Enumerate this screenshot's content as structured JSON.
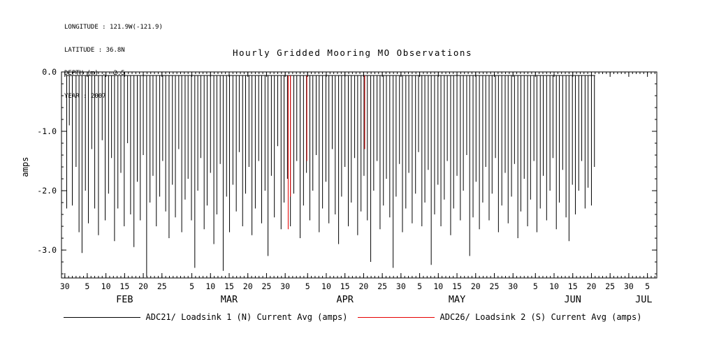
{
  "meta": {
    "longitude": "LONGITUDE : 121.9W(-121.9)",
    "latitude": "LATITUDE : 36.8N",
    "depth": "DEPTH (m) : -2.5",
    "year": "YEAR : 2007"
  },
  "title": "Hourly Gridded Mooring MO Observations",
  "ylabel": "amps",
  "colors": {
    "black_series": "#000000",
    "red_series": "#e60000",
    "axis": "#000000"
  },
  "legend": [
    {
      "label": "ADC21/ Loadsink 1 (N) Current Avg (amps)",
      "color": "#000000"
    },
    {
      "label": "ADC26/ Loadsink 2 (S) Current Avg (amps)",
      "color": "#e60000"
    }
  ],
  "chart_data": {
    "type": "line",
    "title": "Hourly Gridded Mooring MO Observations",
    "ylabel": "amps",
    "xlabel": "",
    "x_unit": "days (day 0 = Jan 30, year 2007)",
    "ylim": [
      -3.47,
      0
    ],
    "xlim_days": [
      -0.9,
      158.5
    ],
    "grid": false,
    "legend_position": "bottom",
    "baseline": -0.06,
    "baseline_range_days": [
      0.2,
      142
    ],
    "y_ticks": [
      {
        "v": 0,
        "label": "0.0"
      },
      {
        "v": -1,
        "label": "-1.0"
      },
      {
        "v": -2,
        "label": "-2.0"
      },
      {
        "v": -3,
        "label": "-3.0"
      }
    ],
    "y_minor_step": 0.2,
    "x_minor_step": 1,
    "x_ticks": [
      {
        "day": 0,
        "label": "30"
      },
      {
        "day": 6,
        "label": "5"
      },
      {
        "day": 11,
        "label": "10"
      },
      {
        "day": 16,
        "label": "15"
      },
      {
        "day": 21,
        "label": "20"
      },
      {
        "day": 26,
        "label": "25"
      },
      {
        "day": 34,
        "label": "5"
      },
      {
        "day": 39,
        "label": "10"
      },
      {
        "day": 44,
        "label": "15"
      },
      {
        "day": 49,
        "label": "20"
      },
      {
        "day": 54,
        "label": "25"
      },
      {
        "day": 59,
        "label": "30"
      },
      {
        "day": 65,
        "label": "5"
      },
      {
        "day": 70,
        "label": "10"
      },
      {
        "day": 75,
        "label": "15"
      },
      {
        "day": 80,
        "label": "20"
      },
      {
        "day": 85,
        "label": "25"
      },
      {
        "day": 90,
        "label": "30"
      },
      {
        "day": 95,
        "label": "5"
      },
      {
        "day": 100,
        "label": "10"
      },
      {
        "day": 105,
        "label": "15"
      },
      {
        "day": 110,
        "label": "20"
      },
      {
        "day": 115,
        "label": "25"
      },
      {
        "day": 120,
        "label": "30"
      },
      {
        "day": 126,
        "label": "5"
      },
      {
        "day": 131,
        "label": "10"
      },
      {
        "day": 136,
        "label": "15"
      },
      {
        "day": 141,
        "label": "20"
      },
      {
        "day": 146,
        "label": "25"
      },
      {
        "day": 151,
        "label": "30"
      },
      {
        "day": 156,
        "label": "5"
      }
    ],
    "month_labels": [
      {
        "day": 16,
        "label": "FEB"
      },
      {
        "day": 44,
        "label": "MAR"
      },
      {
        "day": 75,
        "label": "APR"
      },
      {
        "day": 105,
        "label": "MAY"
      },
      {
        "day": 136,
        "label": "JUN"
      },
      {
        "day": 155,
        "label": "JUL"
      }
    ],
    "series": [
      {
        "name": "ADC21/ Loadsink 1 (N) Current Avg (amps)",
        "color": "#000000",
        "spikes": [
          [
            0.5,
            -2.3
          ],
          [
            1.2,
            -0.9
          ],
          [
            2.0,
            -2.25
          ],
          [
            3.0,
            -1.6
          ],
          [
            3.8,
            -2.7
          ],
          [
            4.6,
            -3.05
          ],
          [
            5.5,
            -2.0
          ],
          [
            6.3,
            -2.55
          ],
          [
            7.2,
            -1.3
          ],
          [
            8.0,
            -2.3
          ],
          [
            9.0,
            -2.75
          ],
          [
            10.0,
            -1.15
          ],
          [
            10.8,
            -2.5
          ],
          [
            11.7,
            -2.05
          ],
          [
            12.5,
            -1.45
          ],
          [
            13.3,
            -2.85
          ],
          [
            14.2,
            -2.3
          ],
          [
            15.0,
            -1.7
          ],
          [
            15.9,
            -2.6
          ],
          [
            16.8,
            -1.2
          ],
          [
            17.6,
            -2.4
          ],
          [
            18.5,
            -2.95
          ],
          [
            19.4,
            -1.85
          ],
          [
            20.2,
            -2.5
          ],
          [
            21.0,
            -1.4
          ],
          [
            21.9,
            -3.45
          ],
          [
            22.8,
            -2.2
          ],
          [
            23.6,
            -1.75
          ],
          [
            24.5,
            -2.6
          ],
          [
            25.4,
            -2.1
          ],
          [
            26.2,
            -1.5
          ],
          [
            27.0,
            -2.35
          ],
          [
            27.9,
            -2.8
          ],
          [
            28.8,
            -1.9
          ],
          [
            29.6,
            -2.45
          ],
          [
            30.5,
            -1.3
          ],
          [
            31.3,
            -2.7
          ],
          [
            32.2,
            -2.15
          ],
          [
            33.0,
            -1.8
          ],
          [
            33.9,
            -2.5
          ],
          [
            34.8,
            -3.3
          ],
          [
            35.6,
            -2.0
          ],
          [
            36.4,
            -1.45
          ],
          [
            37.3,
            -2.65
          ],
          [
            38.1,
            -2.25
          ],
          [
            39.0,
            -1.7
          ],
          [
            39.9,
            -2.9
          ],
          [
            40.7,
            -2.4
          ],
          [
            41.6,
            -1.55
          ],
          [
            42.4,
            -3.35
          ],
          [
            43.3,
            -2.1
          ],
          [
            44.1,
            -2.7
          ],
          [
            45.0,
            -1.9
          ],
          [
            45.9,
            -2.35
          ],
          [
            46.7,
            -1.35
          ],
          [
            47.6,
            -2.6
          ],
          [
            48.4,
            -2.05
          ],
          [
            49.3,
            -1.6
          ],
          [
            50.1,
            -2.75
          ],
          [
            51.0,
            -2.3
          ],
          [
            51.9,
            -1.5
          ],
          [
            52.7,
            -2.55
          ],
          [
            53.6,
            -2.0
          ],
          [
            54.4,
            -3.1
          ],
          [
            55.3,
            -1.75
          ],
          [
            56.1,
            -2.45
          ],
          [
            57.0,
            -1.25
          ],
          [
            57.9,
            -2.65
          ],
          [
            58.7,
            -2.2
          ],
          [
            59.6,
            -1.8
          ],
          [
            60.4,
            -2.6
          ],
          [
            61.3,
            -2.05
          ],
          [
            62.1,
            -1.5
          ],
          [
            63.0,
            -2.8
          ],
          [
            63.9,
            -2.25
          ],
          [
            64.7,
            -1.7
          ],
          [
            65.6,
            -2.5
          ],
          [
            66.4,
            -2.0
          ],
          [
            67.3,
            -1.4
          ],
          [
            68.1,
            -2.7
          ],
          [
            69.0,
            -2.3
          ],
          [
            69.9,
            -1.85
          ],
          [
            70.7,
            -2.55
          ],
          [
            71.6,
            -1.3
          ],
          [
            72.4,
            -2.4
          ],
          [
            73.3,
            -2.9
          ],
          [
            74.1,
            -2.1
          ],
          [
            75.0,
            -1.6
          ],
          [
            75.9,
            -2.6
          ],
          [
            76.7,
            -2.2
          ],
          [
            77.6,
            -1.45
          ],
          [
            78.4,
            -2.75
          ],
          [
            79.3,
            -2.35
          ],
          [
            80.1,
            -1.75
          ],
          [
            81.0,
            -2.5
          ],
          [
            81.9,
            -3.2
          ],
          [
            82.7,
            -2.0
          ],
          [
            83.6,
            -1.5
          ],
          [
            84.4,
            -2.65
          ],
          [
            85.3,
            -2.25
          ],
          [
            86.1,
            -1.8
          ],
          [
            87.0,
            -2.45
          ],
          [
            87.9,
            -3.3
          ],
          [
            88.7,
            -2.1
          ],
          [
            89.6,
            -1.55
          ],
          [
            90.4,
            -2.7
          ],
          [
            91.3,
            -2.3
          ],
          [
            92.1,
            -1.7
          ],
          [
            93.0,
            -2.55
          ],
          [
            93.9,
            -2.05
          ],
          [
            94.7,
            -1.35
          ],
          [
            95.6,
            -2.6
          ],
          [
            96.4,
            -2.2
          ],
          [
            97.3,
            -1.65
          ],
          [
            98.1,
            -3.25
          ],
          [
            99.0,
            -2.4
          ],
          [
            99.9,
            -1.9
          ],
          [
            100.7,
            -2.6
          ],
          [
            101.6,
            -2.15
          ],
          [
            102.4,
            -1.5
          ],
          [
            103.3,
            -2.75
          ],
          [
            104.1,
            -2.3
          ],
          [
            105.0,
            -1.75
          ],
          [
            105.9,
            -2.5
          ],
          [
            106.7,
            -2.0
          ],
          [
            107.6,
            -1.4
          ],
          [
            108.4,
            -3.1
          ],
          [
            109.3,
            -2.45
          ],
          [
            110.1,
            -1.85
          ],
          [
            111.0,
            -2.65
          ],
          [
            111.9,
            -2.2
          ],
          [
            112.7,
            -1.6
          ],
          [
            113.6,
            -2.5
          ],
          [
            114.4,
            -2.05
          ],
          [
            115.3,
            -1.45
          ],
          [
            116.1,
            -2.7
          ],
          [
            117.0,
            -2.25
          ],
          [
            117.9,
            -1.7
          ],
          [
            118.7,
            -2.55
          ],
          [
            119.6,
            -2.1
          ],
          [
            120.4,
            -1.55
          ],
          [
            121.3,
            -2.8
          ],
          [
            122.1,
            -2.35
          ],
          [
            123.0,
            -1.8
          ],
          [
            123.9,
            -2.6
          ],
          [
            124.7,
            -2.15
          ],
          [
            125.6,
            -1.5
          ],
          [
            126.4,
            -2.7
          ],
          [
            127.3,
            -2.3
          ],
          [
            128.1,
            -1.75
          ],
          [
            129.0,
            -2.5
          ],
          [
            129.9,
            -2.0
          ],
          [
            130.7,
            -1.45
          ],
          [
            131.6,
            -2.65
          ],
          [
            132.4,
            -2.2
          ],
          [
            133.3,
            -1.65
          ],
          [
            134.2,
            -2.45
          ],
          [
            135.0,
            -2.85
          ],
          [
            135.9,
            -1.9
          ],
          [
            136.7,
            -2.4
          ],
          [
            137.6,
            -2.0
          ],
          [
            138.4,
            -1.5
          ],
          [
            139.3,
            -2.3
          ],
          [
            140.1,
            -1.95
          ],
          [
            141.0,
            -2.25
          ],
          [
            141.8,
            -1.6
          ]
        ]
      },
      {
        "name": "ADC26/ Loadsink 2 (S) Current Avg (amps)",
        "color": "#e60000",
        "spikes": [
          [
            59.8,
            -2.65
          ],
          [
            60.4,
            -2.1
          ],
          [
            64.8,
            -1.5
          ],
          [
            80.3,
            -1.3
          ]
        ]
      }
    ]
  }
}
